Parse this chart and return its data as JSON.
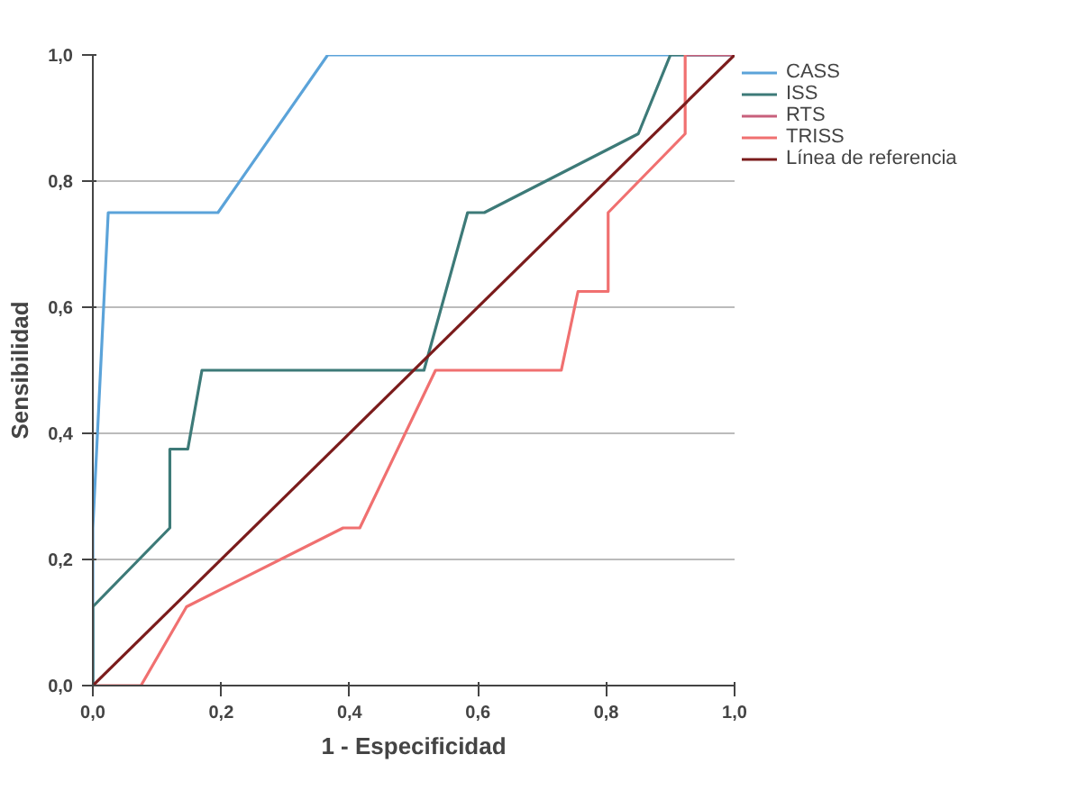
{
  "chart_data": {
    "type": "line",
    "xlabel": "1 - Especificidad",
    "ylabel": "Sensibilidad",
    "series": [
      {
        "name": "CASS",
        "color": "#5ba3d9",
        "x": [
          0,
          0,
          0.024,
          0.195,
          0.366,
          1
        ],
        "values": [
          0,
          0.25,
          0.75,
          0.75,
          1,
          1
        ]
      },
      {
        "name": "ISS",
        "color": "#3d7a78",
        "x": [
          0,
          0,
          0.12,
          0.12,
          0.148,
          0.17,
          0.516,
          0.584,
          0.61,
          0.85,
          0.9,
          1
        ],
        "values": [
          0,
          0.125,
          0.25,
          0.375,
          0.375,
          0.5,
          0.5,
          0.75,
          0.75,
          0.875,
          1,
          1
        ]
      },
      {
        "name": "RTS",
        "color": "#c8607c",
        "x": [
          0.923,
          1
        ],
        "values": [
          1,
          1
        ]
      },
      {
        "name": "TRISS",
        "color": "#f07070",
        "x": [
          0,
          0.075,
          0.146,
          0.39,
          0.416,
          0.534,
          0.73,
          0.756,
          0.803,
          0.803,
          0.923,
          0.923
        ],
        "values": [
          0,
          0,
          0.125,
          0.25,
          0.25,
          0.5,
          0.5,
          0.625,
          0.625,
          0.75,
          0.875,
          1
        ]
      },
      {
        "name": "Línea de referencia",
        "color": "#7b1c1c",
        "x": [
          0,
          1
        ],
        "values": [
          0,
          1
        ]
      }
    ],
    "xlim": [
      0,
      1
    ],
    "ylim": [
      0,
      1
    ],
    "xticks": [
      {
        "value": 0,
        "label": "0,0"
      },
      {
        "value": 0.2,
        "label": "0,2"
      },
      {
        "value": 0.4,
        "label": "0,4"
      },
      {
        "value": 0.6,
        "label": "0,6"
      },
      {
        "value": 0.8,
        "label": "0,8"
      },
      {
        "value": 1,
        "label": "1,0"
      }
    ],
    "yticks": [
      {
        "value": 0,
        "label": "0,0"
      },
      {
        "value": 0.2,
        "label": "0,2"
      },
      {
        "value": 0.4,
        "label": "0,4"
      },
      {
        "value": 0.6,
        "label": "0,6"
      },
      {
        "value": 0.8,
        "label": "0,8"
      },
      {
        "value": 1,
        "label": "1,0"
      }
    ],
    "grid": "y",
    "legend": "top right",
    "line_style": "solid"
  }
}
